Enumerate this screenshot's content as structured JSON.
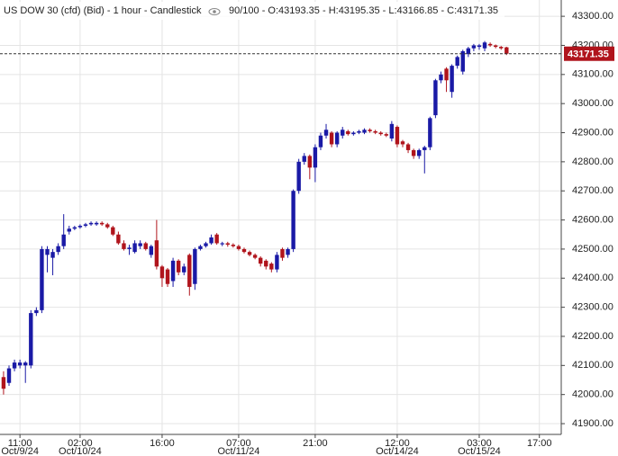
{
  "chart_data": {
    "type": "candlestick",
    "title": "US DOW 30 (cfd) (Bid) - 1 hour - Candlestick",
    "info": "90/100 - O:43193.35 - H:43195.35 - L:43166.85 - C:43171.35",
    "up_color": "#1a1aa6",
    "down_color": "#b0141c",
    "grid": true,
    "ylim": [
      41863,
      43356
    ],
    "yticks": [
      {
        "value": 41900,
        "label": "41900.00"
      },
      {
        "value": 42000,
        "label": "42000.00"
      },
      {
        "value": 42100,
        "label": "42100.00"
      },
      {
        "value": 42200,
        "label": "42200.00"
      },
      {
        "value": 42300,
        "label": "42300.00"
      },
      {
        "value": 42400,
        "label": "42400.00"
      },
      {
        "value": 42500,
        "label": "42500.00"
      },
      {
        "value": 42600,
        "label": "42600.00"
      },
      {
        "value": 42700,
        "label": "42700.00"
      },
      {
        "value": 42800,
        "label": "42800.00"
      },
      {
        "value": 42900,
        "label": "42900.00"
      },
      {
        "value": 43000,
        "label": "43000.00"
      },
      {
        "value": 43100,
        "label": "43100.00"
      },
      {
        "value": 43200,
        "label": "43200.00"
      },
      {
        "value": 43300,
        "label": "43300.00"
      }
    ],
    "xlim": [
      -0.65,
      102
    ],
    "xticks": [
      {
        "value": 3,
        "label": "11:00"
      },
      {
        "value": 14,
        "label": "02:00"
      },
      {
        "value": 29,
        "label": "16:00"
      },
      {
        "value": 43,
        "label": "07:00"
      },
      {
        "value": 57,
        "label": "21:00"
      },
      {
        "value": 72,
        "label": "12:00"
      },
      {
        "value": 87,
        "label": "03:00"
      },
      {
        "value": 98,
        "label": "17:00"
      }
    ],
    "xdates": [
      {
        "value": 3,
        "label": "Oct/9/24"
      },
      {
        "value": 14,
        "label": "Oct/10/24"
      },
      {
        "value": 43,
        "label": "Oct/11/24"
      },
      {
        "value": 72,
        "label": "Oct/14/24"
      },
      {
        "value": 87,
        "label": "Oct/15/24"
      }
    ],
    "open": [
      42060,
      42040,
      42090,
      42100,
      42100,
      42100,
      42280,
      42290,
      42480,
      42470,
      42490,
      42510,
      42560,
      42570,
      42575,
      42580,
      42585,
      42585,
      42590,
      42585,
      42575,
      42550,
      42520,
      42500,
      42490,
      42510,
      42520,
      42480,
      42530,
      42440,
      42430,
      42390,
      42460,
      42420,
      42480,
      42380,
      42500,
      42510,
      42520,
      42550,
      42520,
      42520,
      42515,
      42510,
      42500,
      42490,
      42480,
      42470,
      42460,
      42450,
      42430,
      42500,
      42480,
      42500,
      42700,
      42800,
      42820,
      42780,
      42850,
      42890,
      42900,
      42860,
      42890,
      42905,
      42895,
      42900,
      42900,
      42910,
      42905,
      42900,
      42895,
      42880,
      42920,
      42870,
      42860,
      42840,
      42820,
      42840,
      42850,
      42960,
      43080,
      43120,
      43040,
      43130,
      43110,
      43170,
      43190,
      43195,
      43190,
      43205,
      43200,
      43195,
      43193.35
    ],
    "high": [
      42080,
      42100,
      42120,
      42120,
      42115,
      42290,
      42300,
      42510,
      42510,
      42500,
      42520,
      42620,
      42580,
      42580,
      42585,
      42590,
      42595,
      42595,
      42595,
      42590,
      42580,
      42560,
      42530,
      42515,
      42530,
      42530,
      42525,
      42515,
      42600,
      42445,
      42435,
      42470,
      42465,
      42450,
      42485,
      42505,
      42515,
      42525,
      42550,
      42555,
      42525,
      42525,
      42520,
      42515,
      42505,
      42495,
      42485,
      42475,
      42465,
      42455,
      42490,
      42505,
      42505,
      42705,
      42810,
      42830,
      42825,
      42860,
      42900,
      42930,
      42905,
      42905,
      42920,
      42910,
      42905,
      42910,
      42915,
      42915,
      42910,
      42905,
      42900,
      42940,
      42925,
      42875,
      42865,
      42845,
      42845,
      42855,
      42955,
      43085,
      43110,
      43125,
      43135,
      43165,
      43185,
      43195,
      43205,
      43205,
      43215,
      43210,
      43203,
      43198,
      43195.35
    ],
    "low": [
      42000,
      42030,
      42080,
      42090,
      42040,
      42090,
      42270,
      42280,
      42420,
      42410,
      42480,
      42500,
      42550,
      42565,
      42570,
      42575,
      42580,
      42580,
      42580,
      42570,
      42545,
      42515,
      42495,
      42480,
      42485,
      42500,
      42495,
      42470,
      42430,
      42370,
      42370,
      42370,
      42410,
      42410,
      42340,
      42360,
      42495,
      42505,
      42515,
      42515,
      42510,
      42508,
      42505,
      42495,
      42485,
      42475,
      42465,
      42440,
      42430,
      42420,
      42420,
      42460,
      42470,
      42490,
      42690,
      42790,
      42740,
      42730,
      42840,
      42880,
      42850,
      42850,
      42880,
      42890,
      42890,
      42895,
      42895,
      42900,
      42895,
      42890,
      42885,
      42870,
      42850,
      42850,
      42830,
      42810,
      42810,
      42760,
      42840,
      42950,
      43070,
      43040,
      43020,
      43120,
      43100,
      43160,
      43180,
      43185,
      43180,
      43195,
      43190,
      43185,
      43166.85
    ],
    "close": [
      42020,
      42090,
      42110,
      42110,
      42110,
      42280,
      42290,
      42500,
      42500,
      42490,
      42510,
      42550,
      42570,
      42575,
      42580,
      42585,
      42590,
      42590,
      42585,
      42575,
      42550,
      42520,
      42500,
      42505,
      42520,
      42520,
      42500,
      42510,
      42440,
      42400,
      42380,
      42460,
      42420,
      42440,
      42370,
      42500,
      42510,
      42520,
      42540,
      42520,
      42520,
      42515,
      42510,
      42500,
      42490,
      42480,
      42470,
      42450,
      42440,
      42430,
      42480,
      42470,
      42500,
      42700,
      42800,
      42820,
      42780,
      42850,
      42890,
      42910,
      42860,
      42900,
      42910,
      42895,
      42900,
      42905,
      42910,
      42905,
      42900,
      42895,
      42890,
      42930,
      42860,
      42860,
      42840,
      42820,
      42840,
      42850,
      42950,
      43080,
      43100,
      43080,
      43130,
      43160,
      43180,
      43190,
      43200,
      43200,
      43210,
      43200,
      43195,
      43190,
      43171.35
    ]
  }
}
